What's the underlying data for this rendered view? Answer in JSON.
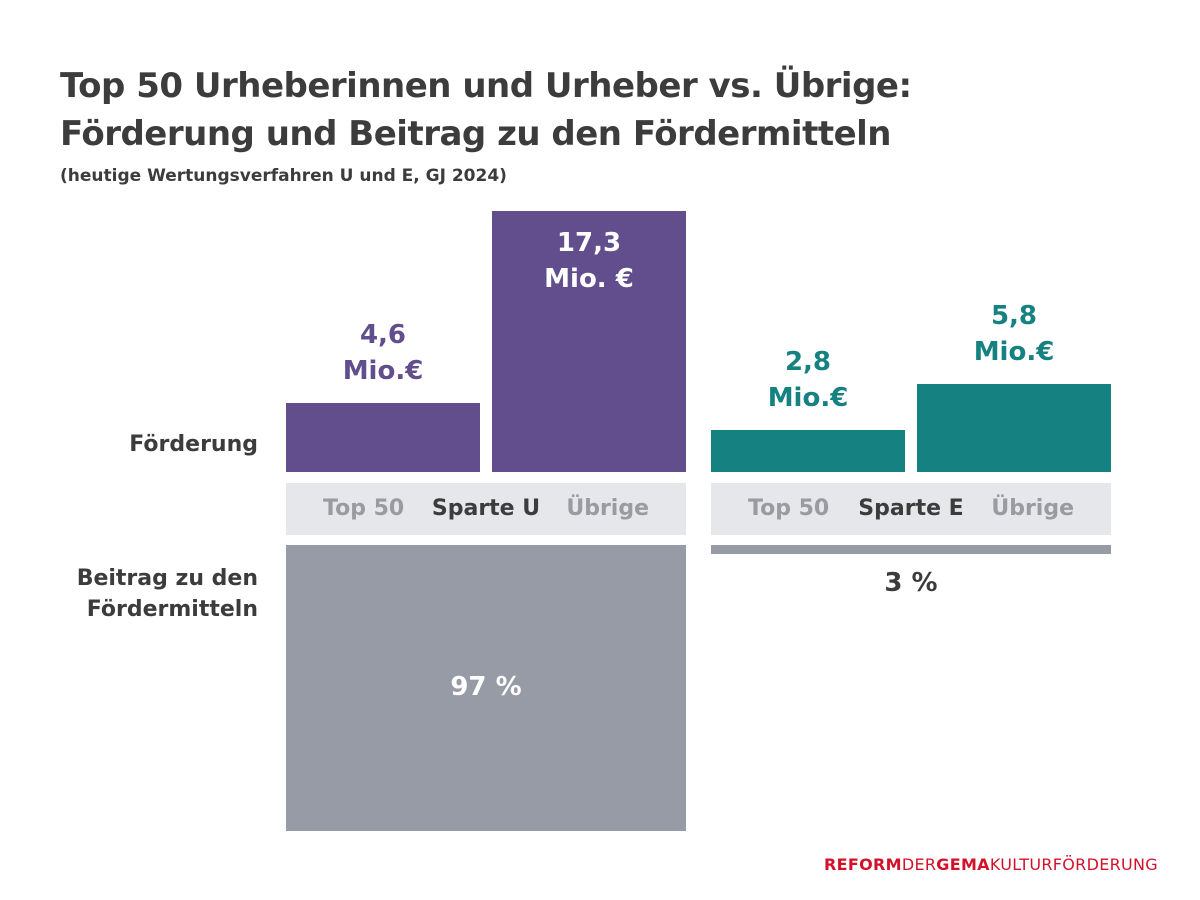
{
  "colors": {
    "purple": "#624e8c",
    "teal": "#158281",
    "grey_bar": "#979ba6",
    "band": "#e6e7ea",
    "text_dark": "#3c3c3c",
    "text_light": "#9a9aa0",
    "brand_red": "#d3122a"
  },
  "chart_data": {
    "type": "bar",
    "title_line1": "Top 50 Urheberinnen und Urheber vs. Übrige:",
    "title_line2": "Förderung und Beitrag zu den Fördermitteln",
    "subtitle": "(heutige Wertungsverfahren U und E, GJ 2024)",
    "row_labels": {
      "foerderung": "Förderung",
      "beitrag_line1": "Beitrag zu den",
      "beitrag_line2": "Fördermitteln"
    },
    "unit": "Mio. €",
    "groups": [
      {
        "name": "Sparte U",
        "categories": [
          "Top 50",
          "Übrige"
        ],
        "foerderung": [
          4.6,
          17.3
        ],
        "labels": [
          [
            "4,6",
            "Mio.€"
          ],
          [
            "17,3",
            "Mio. €"
          ]
        ],
        "beitrag_pct": 97,
        "beitrag_label": "97 %"
      },
      {
        "name": "Sparte E",
        "categories": [
          "Top 50",
          "Übrige"
        ],
        "foerderung": [
          2.8,
          5.8
        ],
        "labels": [
          [
            "2,8",
            "Mio.€"
          ],
          [
            "5,8",
            "Mio.€"
          ]
        ],
        "beitrag_pct": 3,
        "beitrag_label": "3 %"
      }
    ]
  },
  "brand": {
    "part1": "REFORM",
    "part2": "DER",
    "part3": "GEMA",
    "part4": "KULTURFÖRDERUNG"
  }
}
